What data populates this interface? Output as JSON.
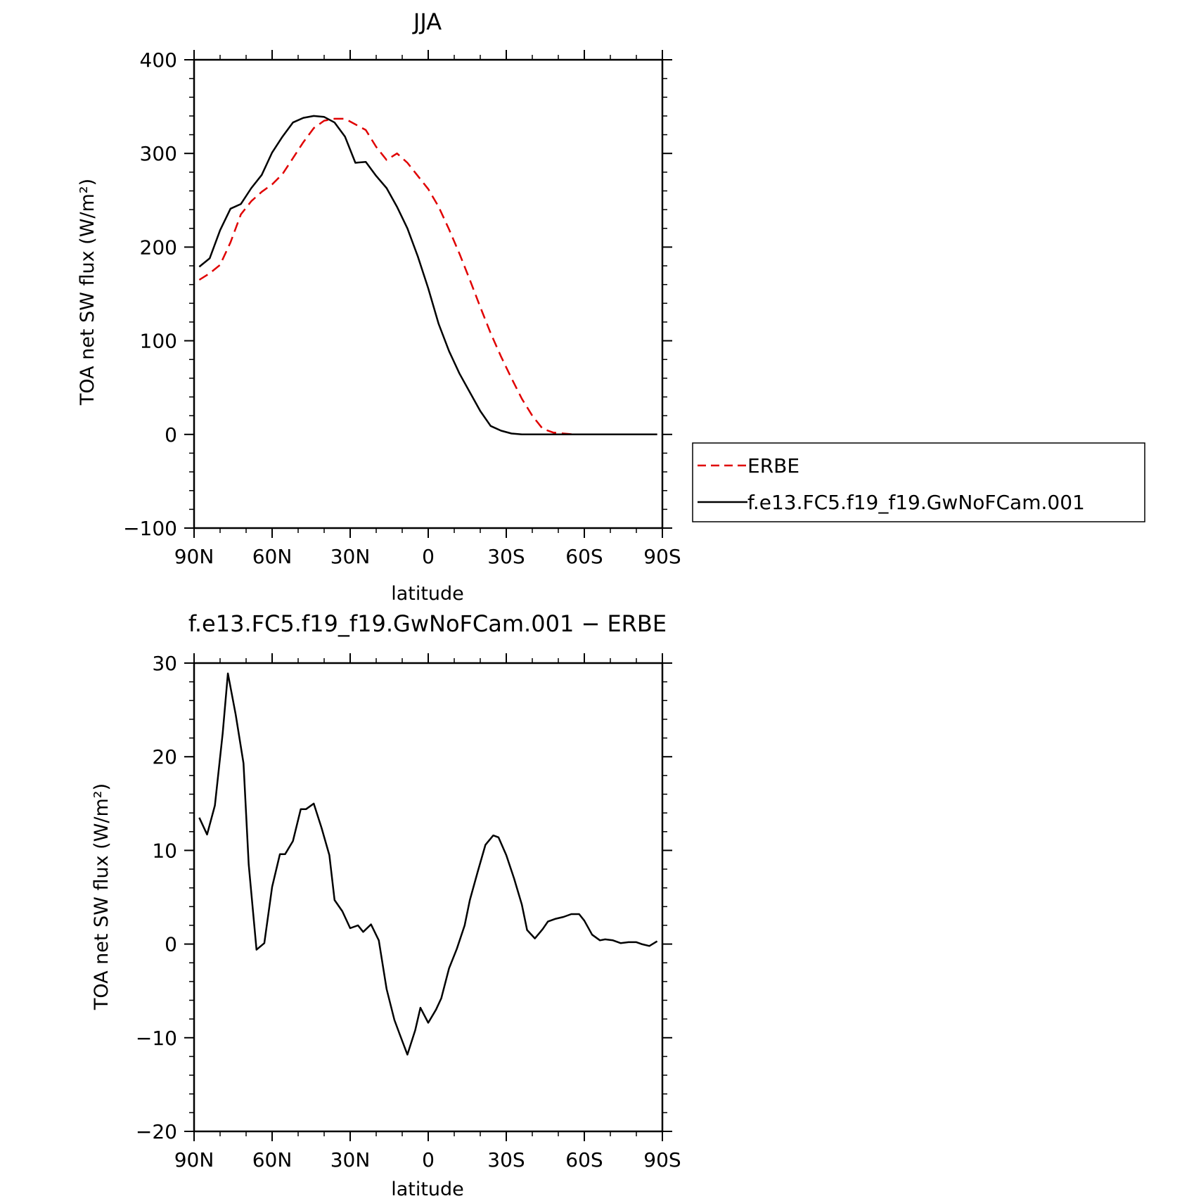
{
  "chart_data": [
    {
      "type": "line",
      "title": "JJA",
      "xlabel": "latitude",
      "ylabel": "TOA net SW flux (W/m²)",
      "ylim": [
        -100,
        400
      ],
      "yticks": [
        "400",
        "300",
        "200",
        "100",
        "0",
        "−100"
      ],
      "ytick_values": [
        400,
        300,
        200,
        100,
        0,
        -100
      ],
      "xlim": [
        90,
        -90
      ],
      "xticks": [
        "90N",
        "60N",
        "30N",
        "0",
        "30S",
        "60S",
        "90S"
      ],
      "xtick_values": [
        90,
        60,
        30,
        0,
        -30,
        -60,
        -90
      ],
      "legend": {
        "placement": "right",
        "entries": [
          "ERBE",
          "f.e13.FC5.f19_f19.GwNoFCam.001"
        ]
      },
      "series": [
        {
          "name": "ERBE",
          "color": "#e00000",
          "style": "dashed",
          "x": [
            88,
            84,
            80,
            76,
            72,
            68,
            64,
            60,
            56,
            52,
            48,
            44,
            40,
            36,
            32,
            28,
            24,
            20,
            16,
            12,
            8,
            4,
            0,
            -4,
            -8,
            -12,
            -16,
            -20,
            -24,
            -28,
            -32,
            -36,
            -40,
            -44,
            -48,
            -52,
            -56,
            -60,
            -64,
            -68,
            -72,
            -76,
            -80,
            -84,
            -88
          ],
          "y": [
            165,
            172,
            181,
            205,
            235,
            249,
            259,
            267,
            278,
            295,
            312,
            327,
            335,
            337,
            337,
            331,
            325,
            307,
            293,
            300,
            290,
            276,
            262,
            243,
            219,
            193,
            165,
            136,
            108,
            83,
            60,
            38,
            20,
            6,
            2,
            1,
            0,
            0,
            0,
            0,
            0,
            0,
            0,
            0,
            0
          ]
        },
        {
          "name": "f.e13.FC5.f19_f19.GwNoFCam.001",
          "color": "#000000",
          "style": "solid",
          "x": [
            88,
            84,
            80,
            76,
            72,
            68,
            64,
            60,
            56,
            52,
            48,
            44,
            40,
            36,
            32,
            28,
            24,
            20,
            16,
            12,
            8,
            4,
            0,
            -4,
            -8,
            -12,
            -16,
            -20,
            -24,
            -28,
            -32,
            -36,
            -40,
            -44,
            -48,
            -52,
            -56,
            -60,
            -64,
            -68,
            -72,
            -76,
            -80,
            -84,
            -88
          ],
          "y": [
            179,
            188,
            218,
            241,
            246,
            263,
            277,
            301,
            318,
            333,
            338,
            340,
            339,
            333,
            318,
            290,
            291,
            276,
            263,
            243,
            220,
            190,
            156,
            118,
            89,
            65,
            45,
            25,
            9,
            4,
            1,
            0,
            0,
            0,
            0,
            0,
            0,
            0,
            0,
            0,
            0,
            0,
            0,
            0,
            0
          ]
        }
      ]
    },
    {
      "type": "line",
      "title": "f.e13.FC5.f19_f19.GwNoFCam.001 − ERBE",
      "xlabel": "latitude",
      "ylabel": "TOA net SW flux (W/m²)",
      "ylim": [
        -20,
        30
      ],
      "yticks": [
        "30",
        "20",
        "10",
        "0",
        "−10",
        "−20"
      ],
      "ytick_values": [
        30,
        20,
        10,
        0,
        -10,
        -20
      ],
      "xlim": [
        90,
        -90
      ],
      "xticks": [
        "90N",
        "60N",
        "30N",
        "0",
        "30S",
        "60S",
        "90S"
      ],
      "xtick_values": [
        90,
        60,
        30,
        0,
        -30,
        -60,
        -90
      ],
      "series": [
        {
          "color": "#000000",
          "style": "solid",
          "x": [
            88,
            85,
            82,
            79,
            77,
            74,
            71,
            69,
            66,
            63,
            60,
            57,
            55,
            52,
            49,
            47,
            44,
            41,
            38,
            36,
            33,
            30,
            27,
            25,
            22,
            19,
            16,
            13,
            11,
            8,
            5,
            3,
            0,
            -3,
            -5,
            -8,
            -11,
            -14,
            -16,
            -19,
            -22,
            -25,
            -27,
            -30,
            -33,
            -36,
            -38,
            -41,
            -44,
            -46,
            -49,
            -52,
            -55,
            -58,
            -60,
            -63,
            -66,
            -68,
            -71,
            -74,
            -77,
            -80,
            -82,
            -85,
            -88
          ],
          "y": [
            13.5,
            11.7,
            14.8,
            22.5,
            28.9,
            24.5,
            19.3,
            8.5,
            -0.6,
            0.1,
            6.1,
            9.6,
            9.6,
            11.0,
            14.4,
            14.4,
            15.0,
            12.4,
            9.5,
            4.7,
            3.5,
            1.7,
            2.0,
            1.3,
            2.1,
            0.4,
            -4.8,
            -8.1,
            -9.6,
            -11.8,
            -9.2,
            -6.8,
            -8.4,
            -7.0,
            -5.8,
            -2.6,
            -0.5,
            2.0,
            4.7,
            7.7,
            10.6,
            11.6,
            11.4,
            9.5,
            7.0,
            4.2,
            1.5,
            0.6,
            1.6,
            2.4,
            2.7,
            2.9,
            3.2,
            3.2,
            2.5,
            1.0,
            0.4,
            0.5,
            0.4,
            0.1,
            0.2,
            0.2,
            0.0,
            -0.2,
            0.3
          ]
        }
      ]
    }
  ]
}
